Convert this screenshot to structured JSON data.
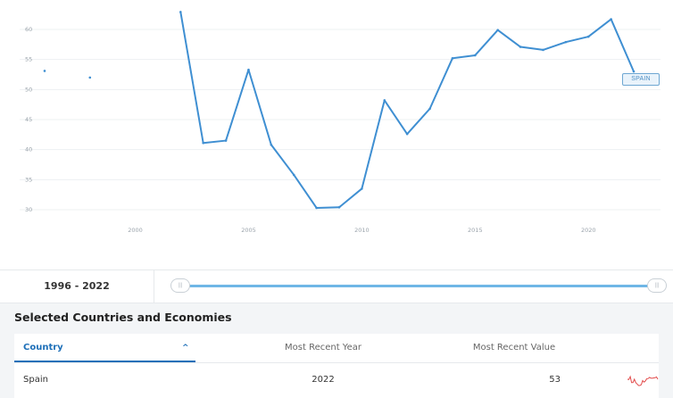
{
  "chart_data": {
    "type": "line",
    "x": [
      1996,
      1998,
      2002,
      2003,
      2004,
      2005,
      2006,
      2007,
      2008,
      2009,
      2010,
      2011,
      2012,
      2013,
      2014,
      2015,
      2016,
      2017,
      2018,
      2019,
      2020,
      2021,
      2022
    ],
    "series": [
      {
        "name": "SPAIN",
        "color": "#3f8fd2",
        "values": [
          53.1,
          52.0,
          62.9,
          41.1,
          41.5,
          53.3,
          40.8,
          35.8,
          30.3,
          30.4,
          33.5,
          48.2,
          42.6,
          46.8,
          55.2,
          55.7,
          59.9,
          57.1,
          56.6,
          57.9,
          58.8,
          61.7,
          53.0
        ]
      }
    ],
    "xlim": [
      1996,
      2022
    ],
    "ylim": [
      29,
      63
    ],
    "y_ticks": [
      "30",
      "35",
      "40",
      "45",
      "50",
      "55",
      "60"
    ],
    "x_ticks": [
      "2000",
      "2005",
      "2010",
      "2015",
      "2020"
    ],
    "grid": true
  },
  "series_tag": "SPAIN",
  "range": {
    "label": "1996 - 2022",
    "handle_glyph": "|||"
  },
  "table": {
    "title": "Selected Countries and Economies",
    "headers": {
      "country": "Country",
      "year": "Most Recent Year",
      "value": "Most Recent Value"
    },
    "sort_glyph": "^",
    "rows": [
      {
        "country": "Spain",
        "year": "2022",
        "value": "53"
      }
    ],
    "sparkline_color": "#e24b4b"
  }
}
